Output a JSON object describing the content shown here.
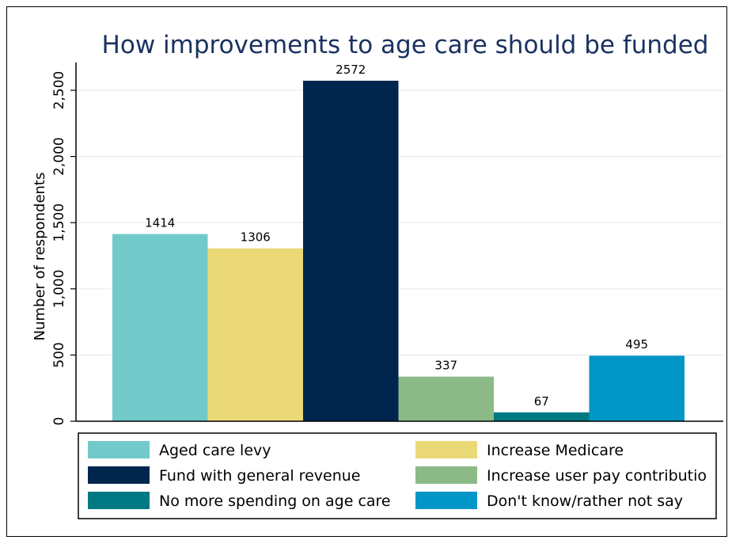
{
  "chart_data": {
    "type": "bar",
    "title": "How improvements to age care should be funded",
    "xlabel": "",
    "ylabel": "Number of respondents",
    "ylim": [
      0,
      2700
    ],
    "yticks": [
      0,
      500,
      1000,
      1500,
      2000,
      2500
    ],
    "ytick_labels": [
      "0",
      "500",
      "1,000",
      "1,500",
      "2,000",
      "2,500"
    ],
    "grid": true,
    "legend_position": "bottom",
    "categories": [
      "Aged care levy",
      "Increase Medicare",
      "Fund with general revenue",
      "Increase user pay contribution",
      "No more spending on age care",
      "Don't know/rather not say"
    ],
    "values": [
      1414,
      1306,
      2572,
      337,
      67,
      495
    ],
    "data_labels": [
      "1414",
      "1306",
      "2572",
      "337",
      "67",
      "495"
    ],
    "colors": [
      "#71c9ca",
      "#ebd978",
      "#00264d",
      "#8bba87",
      "#007a82",
      "#0096c7"
    ],
    "legend": [
      {
        "label": "Aged care levy",
        "color": "#71c9ca"
      },
      {
        "label": "Increase Medicare",
        "color": "#ebd978"
      },
      {
        "label": "Fund with general revenue",
        "color": "#00264d"
      },
      {
        "label": "Increase user pay contributio",
        "color": "#8bba87"
      },
      {
        "label": "No more spending on age care",
        "color": "#007a82"
      },
      {
        "label": "Don't know/rather not say",
        "color": "#0096c7"
      }
    ]
  },
  "colors": {
    "title": "#1a3260",
    "grid": "#e4eef2",
    "axis": "#000000"
  }
}
